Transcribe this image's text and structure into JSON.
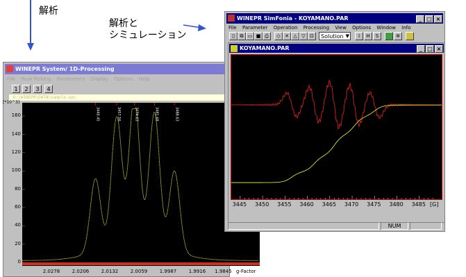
{
  "captions": {
    "analysis": "解析",
    "analysis_sim_line1": "解析と",
    "analysis_sim_line2": "シミュレーション"
  },
  "left_window": {
    "title": "WINEPR System/ 1D-Processing",
    "menu": [
      "File",
      "Peak Picking",
      "Parameters",
      "Display",
      "Options",
      "Help"
    ],
    "buttons": [
      "1",
      "2",
      "3",
      "4"
    ],
    "file_path": "D:\\WINEPR\\DATA\\sample.spc",
    "y_unit": "[*10^3]",
    "x_axis_label": "g-Factor",
    "chart_data": {
      "type": "line",
      "xlabel": "g-Factor",
      "ylabel": "[*10^3]",
      "y_ticks": [
        0,
        20,
        40,
        60,
        80,
        100,
        120,
        140,
        160
      ],
      "ylim": [
        0,
        170
      ],
      "x_ticks": [
        "2.0278",
        "2.0206",
        "2.0132",
        "2.0059",
        "1.9987",
        "1.9916",
        "1.9845"
      ],
      "peak_labels": [
        "3440.45",
        "3457.56",
        "3474.63",
        "3481.68",
        "3488.63"
      ],
      "peak_heights": [
        80,
        140,
        160,
        145,
        88
      ],
      "series": [
        {
          "values": [
            5,
            8,
            20,
            80,
            60,
            140,
            115,
            160,
            118,
            145,
            100,
            88,
            40,
            18,
            8,
            5
          ]
        }
      ]
    }
  },
  "right_window": {
    "title": "WINEPR SimFonia  -  KOYAMANO.PAR",
    "menu": [
      "File",
      "Parameter",
      "Operation",
      "Processing",
      "View",
      "Options",
      "Window",
      "Info"
    ],
    "toolbar_select": "Solution",
    "toolbar_labels": [
      "I",
      "H",
      "S"
    ],
    "child_title": "KOYAMANO.PAR",
    "x_unit": "[G]",
    "status_num": "NUM",
    "chart_data": {
      "type": "line",
      "xlabel": "[G]",
      "x_ticks": [
        "3445",
        "3450",
        "3455",
        "3460",
        "3465",
        "3470",
        "3475",
        "3480",
        "3485"
      ],
      "xlim": [
        3443,
        3490
      ],
      "series": [
        {
          "color": "#d42020"
        },
        {
          "color": "#e0e020"
        }
      ]
    }
  }
}
